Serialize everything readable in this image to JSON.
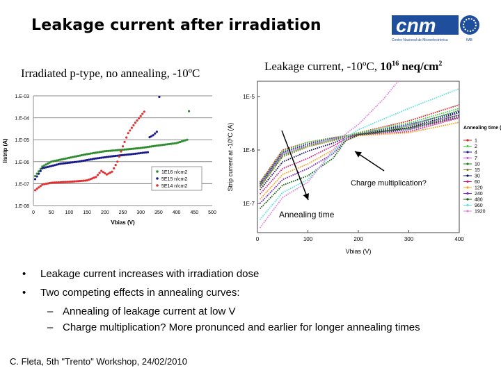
{
  "slide": {
    "title": "Leakage current after irradiation",
    "subtitle_left": "Irradiated p-type, no annealing, -10ºC",
    "subtitle_right_prefix": "Leakage current, -10ºC, ",
    "subtitle_right_fluence": "10",
    "subtitle_right_exp": "16",
    "subtitle_right_unit": " neq/cm",
    "subtitle_right_unit_exp": "2",
    "bullets": [
      "Leakage current increases with irradiation dose",
      "Two competing effects in annealing curves:"
    ],
    "sub_bullets": [
      "Annealing of leakage current at low V",
      "Charge multiplication? More pronunced and earlier for longer annealing times"
    ],
    "bullet_marker": "•",
    "sub_bullet_marker": "–",
    "footer": "C. Fleta, 5th \"Trento\" Workshop, 24/02/2010",
    "logo": {
      "text": "cnm",
      "caption": "Centre Nacional de Microelectrònica",
      "sub": "IMB",
      "color": "#1f4e9c"
    }
  },
  "chart_data": [
    {
      "type": "scatter",
      "xlabel": "Vbias (V)",
      "ylabel": "I/strip (A)",
      "xlim": [
        0,
        500
      ],
      "ylim": [
        1e-08,
        0.001
      ],
      "yscale": "log",
      "x_ticks": [
        "0",
        "50",
        "100",
        "150",
        "200",
        "250",
        "300",
        "350",
        "400",
        "450",
        "500"
      ],
      "y_ticks": [
        "1.E-08",
        "1.E-07",
        "1.E-06",
        "1.E-05",
        "1.E-04",
        "1.E-03"
      ],
      "grid": "horizontal",
      "legend": "bottom-right",
      "series": [
        {
          "name": "1E16 n/cm2",
          "color": "#2e8b2e",
          "x": [
            5,
            25,
            50,
            100,
            150,
            200,
            250,
            300,
            350,
            400,
            430,
            435
          ],
          "y": [
            2.2e-07,
            6e-07,
            1e-06,
            1.5e-06,
            2.2e-06,
            3e-06,
            3.5e-06,
            4.2e-06,
            5.5e-06,
            7e-06,
            1e-05,
            0.0002
          ]
        },
        {
          "name": "5E15 n/cm2",
          "color": "#1a1a8c",
          "x": [
            5,
            25,
            75,
            125,
            175,
            225,
            275,
            320,
            325,
            335,
            345,
            352
          ],
          "y": [
            1.6e-07,
            5e-07,
            8e-07,
            1e-06,
            1.4e-06,
            1.8e-06,
            2.2e-06,
            2.7e-06,
            1.3e-05,
            1.6e-05,
            2.3e-05,
            0.0009
          ]
        },
        {
          "name": "5E14 n/cm2",
          "color": "#e03030",
          "x": [
            5,
            25,
            50,
            100,
            150,
            175,
            190,
            205,
            220,
            235,
            250,
            265,
            285,
            310
          ],
          "y": [
            5e-08,
            9e-08,
            1.1e-07,
            1.2e-07,
            1.4e-07,
            2e-07,
            3.8e-07,
            2.6e-07,
            3.5e-07,
            1e-06,
            5e-06,
            2e-05,
            6e-05,
            0.00019
          ]
        }
      ]
    },
    {
      "type": "line",
      "xlabel": "Vbias (V)",
      "ylabel": "Strip current at -10ºC (A)",
      "xlim": [
        0,
        400
      ],
      "ylim": [
        2.8e-08,
        1.9e-05
      ],
      "yscale": "log",
      "x_ticks": [
        "0",
        "100",
        "200",
        "300",
        "400"
      ],
      "y_ticks": [
        "1E-7",
        "1E-6",
        "1E-5"
      ],
      "grid": "off",
      "legend_title": "Annealing time (min)",
      "legend": "right",
      "annotations": [
        "Charge multiplication?",
        "Annealing time"
      ],
      "series": [
        {
          "name": "1",
          "color": "#e02020",
          "x": [
            5,
            50,
            100,
            150,
            175,
            200,
            300,
            400
          ],
          "y": [
            2.5e-07,
            1e-06,
            1.4e-06,
            1.7e-06,
            1.85e-06,
            2.1e-06,
            3.5e-06,
            7e-06
          ]
        },
        {
          "name": "2",
          "color": "#40d040",
          "x": [
            5,
            50,
            100,
            150,
            175,
            200,
            300,
            400
          ],
          "y": [
            2.4e-07,
            9.5e-07,
            1.4e-06,
            1.7e-06,
            1.85e-06,
            2.1e-06,
            3.2e-06,
            6e-06
          ]
        },
        {
          "name": "4",
          "color": "#1a1aa0",
          "x": [
            5,
            50,
            100,
            150,
            175,
            200,
            300,
            400
          ],
          "y": [
            2.3e-07,
            9e-07,
            1.3e-06,
            1.65e-06,
            1.8e-06,
            2e-06,
            3e-06,
            5.2e-06
          ]
        },
        {
          "name": "7",
          "color": "#c060e0",
          "x": [
            5,
            50,
            100,
            150,
            175,
            200,
            300,
            400
          ],
          "y": [
            2.2e-07,
            8.5e-07,
            1.25e-06,
            1.6e-06,
            1.8e-06,
            2e-06,
            2.8e-06,
            4.5e-06
          ]
        },
        {
          "name": "10",
          "color": "#208020",
          "x": [
            5,
            50,
            100,
            150,
            175,
            200,
            300,
            400
          ],
          "y": [
            2.1e-07,
            8e-07,
            1.2e-06,
            1.55e-06,
            1.8e-06,
            2e-06,
            2.8e-06,
            5.5e-06
          ]
        },
        {
          "name": "15",
          "color": "#8a7a20",
          "x": [
            5,
            50,
            100,
            150,
            175,
            200,
            300,
            400
          ],
          "y": [
            2e-07,
            7.5e-07,
            1.15e-06,
            1.5e-06,
            1.75e-06,
            2e-06,
            2.6e-06,
            4e-06
          ]
        },
        {
          "name": "30",
          "color": "#101060",
          "x": [
            5,
            50,
            100,
            150,
            175,
            200,
            300,
            400
          ],
          "y": [
            1.8e-07,
            6e-07,
            9.5e-07,
            1.35e-06,
            1.7e-06,
            1.95e-06,
            2.6e-06,
            5e-06
          ]
        },
        {
          "name": "60",
          "color": "#d02080",
          "x": [
            5,
            50,
            100,
            150,
            175,
            200,
            300,
            400
          ],
          "y": [
            1.5e-07,
            4.5e-07,
            7e-07,
            1.2e-06,
            1.6e-06,
            1.9e-06,
            2.2e-06,
            4e-06
          ]
        },
        {
          "name": "120",
          "color": "#f0a020",
          "x": [
            5,
            50,
            100,
            150,
            175,
            200,
            300,
            400
          ],
          "y": [
            1.2e-07,
            3.5e-07,
            5.5e-07,
            1e-06,
            1.5e-06,
            1.85e-06,
            2.1e-06,
            3.3e-06
          ]
        },
        {
          "name": "240",
          "color": "#7020c0",
          "x": [
            5,
            50,
            100,
            150,
            175,
            200,
            300,
            400
          ],
          "y": [
            1e-07,
            2.8e-07,
            4.5e-07,
            8.5e-07,
            1.5e-06,
            1.9e-06,
            2.4e-06,
            4.2e-06
          ]
        },
        {
          "name": "480",
          "color": "#106010",
          "x": [
            5,
            50,
            100,
            150,
            175,
            200,
            300,
            400
          ],
          "y": [
            8e-08,
            2.2e-07,
            3.3e-07,
            7e-07,
            1.5e-06,
            1.9e-06,
            2.5e-06,
            4.5e-06
          ]
        },
        {
          "name": "960",
          "color": "#60e0e0",
          "x": [
            5,
            50,
            100,
            150,
            175,
            200,
            300,
            400
          ],
          "y": [
            5e-08,
            1.6e-07,
            2.8e-07,
            9e-07,
            1.7e-06,
            2.4e-06,
            6e-06,
            1.4e-05
          ]
        },
        {
          "name": "1920",
          "color": "#e080e0",
          "x": [
            5,
            50,
            100,
            150,
            175,
            200,
            250,
            280
          ],
          "y": [
            3.5e-08,
            1.3e-07,
            2.5e-07,
            1e-06,
            2e-06,
            3e-06,
            9e-06,
            2e-05
          ]
        }
      ]
    }
  ]
}
